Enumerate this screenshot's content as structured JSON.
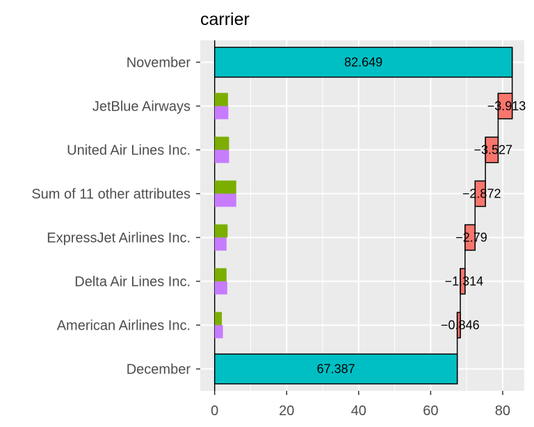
{
  "chart_data": {
    "type": "bar",
    "title": "carrier",
    "xlabel": "",
    "ylabel": "",
    "xlim": [
      -4,
      86
    ],
    "x_ticks": [
      "0",
      "20",
      "40",
      "60",
      "80"
    ],
    "x_tick_values": [
      0,
      20,
      40,
      60,
      80
    ],
    "colors": {
      "total": "#00BFC4",
      "contribution": "#F8766D",
      "secondary_green": "#7CAE00",
      "secondary_purple": "#C77CFF"
    },
    "rows": [
      {
        "label": "November",
        "kind": "total",
        "start": 0,
        "end": 82.649,
        "value_label": "82.649"
      },
      {
        "label": "JetBlue Airways",
        "kind": "step",
        "start": 82.649,
        "end": 78.736,
        "value_label": "−3.913",
        "green": 3.7,
        "purple": 3.8
      },
      {
        "label": "United Air Lines Inc.",
        "kind": "step",
        "start": 78.736,
        "end": 75.209,
        "value_label": "−3.527",
        "green": 4.0,
        "purple": 4.0
      },
      {
        "label": "Sum of 11 other attributes",
        "kind": "step",
        "start": 75.209,
        "end": 72.337,
        "value_label": "−2.872",
        "green": 6.0,
        "purple": 6.0
      },
      {
        "label": "ExpressJet Airlines Inc.",
        "kind": "step",
        "start": 72.337,
        "end": 69.547,
        "value_label": "−2.79",
        "green": 3.6,
        "purple": 3.3
      },
      {
        "label": "Delta Air Lines Inc.",
        "kind": "step",
        "start": 69.547,
        "end": 68.233,
        "value_label": "−1.314",
        "green": 3.3,
        "purple": 3.5
      },
      {
        "label": "American Airlines Inc.",
        "kind": "step",
        "start": 68.233,
        "end": 67.387,
        "value_label": "−0.846",
        "green": 2.0,
        "purple": 2.3
      },
      {
        "label": "December",
        "kind": "total",
        "start": 0,
        "end": 67.387,
        "value_label": "67.387"
      }
    ]
  }
}
